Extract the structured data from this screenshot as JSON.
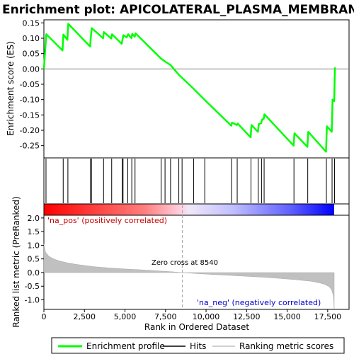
{
  "chart_data": {
    "title": "Enrichment plot: APICOLATERAL_PLASMA_MEMBRANE",
    "x_axis": {
      "label": "Rank in Ordered Dataset",
      "range": [
        0,
        17900
      ],
      "ticks": [
        0,
        2500,
        5000,
        7500,
        10000,
        12500,
        15000,
        17500
      ],
      "tick_labels": [
        "0",
        "2,500",
        "5,000",
        "7,500",
        "10,000",
        "12,500",
        "15,000",
        "17,500"
      ]
    },
    "top_panel": {
      "type": "line",
      "ylabel": "Enrichment score (ES)",
      "ylim": [
        -0.29,
        0.16
      ],
      "yticks": [
        0.15,
        0.1,
        0.05,
        0.0,
        -0.05,
        -0.1,
        -0.15,
        -0.2,
        -0.25
      ],
      "ytick_labels": [
        "0.15",
        "0.10",
        "0.05",
        "0.00",
        "-0.05",
        "-0.10",
        "-0.15",
        "-0.20",
        "-0.25"
      ],
      "grid": false,
      "series_color": "#00ff00",
      "enrichment_profile": [
        [
          0,
          0.0
        ],
        [
          150,
          0.113
        ],
        [
          1150,
          0.06
        ],
        [
          1200,
          0.112
        ],
        [
          1450,
          0.095
        ],
        [
          1500,
          0.147
        ],
        [
          2850,
          0.073
        ],
        [
          2900,
          0.107
        ],
        [
          2950,
          0.133
        ],
        [
          3650,
          0.1
        ],
        [
          3700,
          0.12
        ],
        [
          4150,
          0.099
        ],
        [
          4200,
          0.113
        ],
        [
          4800,
          0.082
        ],
        [
          4850,
          0.097
        ],
        [
          4900,
          0.11
        ],
        [
          5100,
          0.103
        ],
        [
          5200,
          0.113
        ],
        [
          5400,
          0.1
        ],
        [
          5450,
          0.114
        ],
        [
          5600,
          0.105
        ],
        [
          5650,
          0.116
        ],
        [
          7200,
          0.035
        ],
        [
          7450,
          0.025
        ],
        [
          7800,
          0.013
        ],
        [
          8300,
          -0.018
        ],
        [
          8500,
          -0.028
        ],
        [
          9200,
          -0.063
        ],
        [
          9900,
          -0.1
        ],
        [
          11550,
          -0.185
        ],
        [
          11600,
          -0.175
        ],
        [
          11900,
          -0.183
        ],
        [
          11950,
          -0.178
        ],
        [
          12750,
          -0.223
        ],
        [
          12800,
          -0.183
        ],
        [
          13200,
          -0.205
        ],
        [
          13250,
          -0.18
        ],
        [
          13400,
          -0.177
        ],
        [
          13450,
          -0.165
        ],
        [
          13550,
          -0.163
        ],
        [
          13600,
          -0.148
        ],
        [
          15400,
          -0.25
        ],
        [
          15450,
          -0.21
        ],
        [
          16250,
          -0.254
        ],
        [
          16300,
          -0.205
        ],
        [
          17400,
          -0.27
        ],
        [
          17450,
          -0.187
        ],
        [
          17750,
          -0.205
        ],
        [
          17800,
          -0.1
        ],
        [
          17900,
          -0.105
        ],
        [
          17950,
          0.005
        ]
      ],
      "zero_line": 0.0
    },
    "hits_panel": {
      "hit_positions": [
        130,
        1190,
        1480,
        2880,
        2930,
        3680,
        4180,
        4830,
        4880,
        5170,
        5420,
        5620,
        7230,
        7470,
        7810,
        8320,
        8520,
        9230,
        9920,
        11570,
        11920,
        12770,
        13220,
        13420,
        13580,
        15420,
        16270,
        17420,
        17770,
        17920
      ]
    },
    "color_bar": {
      "left_color": "#ff0000",
      "right_color": "#0000ff"
    },
    "bottom_panel": {
      "type": "area",
      "ylabel": "Ranked list metric (PreRanked)",
      "ylim": [
        -1.35,
        2.1
      ],
      "yticks": [
        2.0,
        1.5,
        1.0,
        0.5,
        0.0,
        -0.5,
        -1.0
      ],
      "ytick_labels": [
        "2.0",
        "1.5",
        "1.0",
        "0.5",
        "0.0",
        "-0.5",
        "-1.0"
      ],
      "fill_color": "#c0c0c0",
      "metric_curve": [
        [
          0,
          1.05
        ],
        [
          100,
          0.75
        ],
        [
          300,
          0.6
        ],
        [
          600,
          0.5
        ],
        [
          1000,
          0.42
        ],
        [
          1500,
          0.35
        ],
        [
          2000,
          0.3
        ],
        [
          3000,
          0.22
        ],
        [
          4000,
          0.17
        ],
        [
          5000,
          0.13
        ],
        [
          6000,
          0.1
        ],
        [
          7000,
          0.065
        ],
        [
          8000,
          0.025
        ],
        [
          8540,
          0.0
        ],
        [
          9500,
          -0.04
        ],
        [
          10500,
          -0.075
        ],
        [
          11500,
          -0.105
        ],
        [
          12500,
          -0.135
        ],
        [
          13500,
          -0.17
        ],
        [
          14500,
          -0.21
        ],
        [
          15500,
          -0.26
        ],
        [
          16500,
          -0.32
        ],
        [
          17000,
          -0.38
        ],
        [
          17300,
          -0.43
        ],
        [
          17600,
          -0.52
        ],
        [
          17750,
          -0.65
        ],
        [
          17850,
          -0.85
        ],
        [
          17900,
          -1.32
        ]
      ],
      "zero_cross": 8540,
      "annotations": {
        "pos": "'na_pos' (positively correlated)",
        "neg": "'na_neg' (negatively correlated)",
        "zero_cross": "Zero cross at 8540"
      }
    },
    "legend": {
      "items": [
        {
          "label": "Enrichment profile",
          "color": "#00ff00",
          "kind": "line"
        },
        {
          "label": "Hits",
          "color": "#000000",
          "kind": "line"
        },
        {
          "label": "Ranking metric scores",
          "color": "#c0c0c0",
          "kind": "line"
        }
      ]
    }
  }
}
